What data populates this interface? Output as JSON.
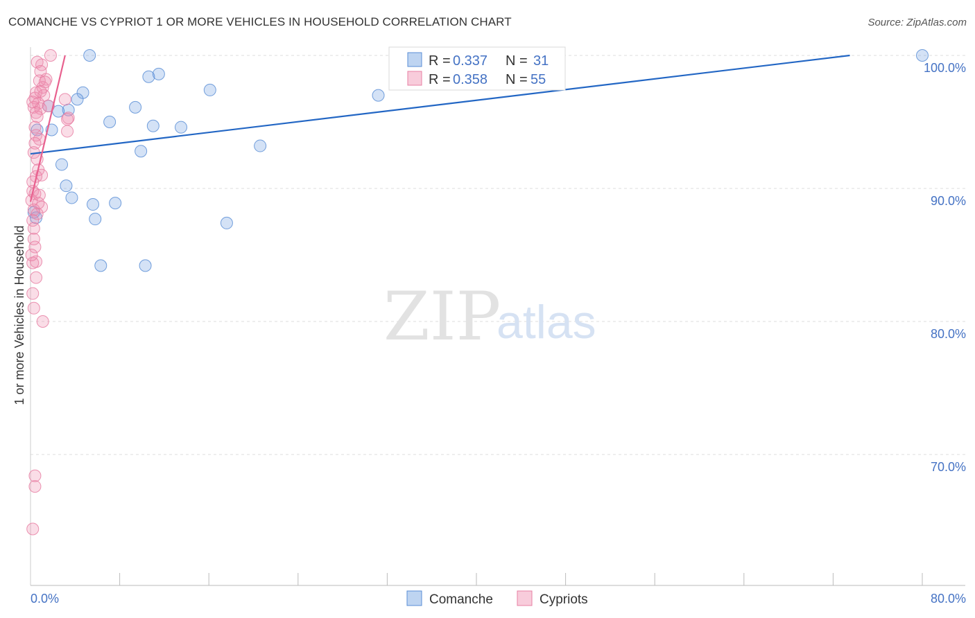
{
  "title": "COMANCHE VS CYPRIOT 1 OR MORE VEHICLES IN HOUSEHOLD CORRELATION CHART",
  "source": "Source: ZipAtlas.com",
  "watermark": {
    "zip": "ZIP",
    "atlas": "atlas"
  },
  "colors": {
    "comanche": "#6fa0e0",
    "comanche_line": "#2266c4",
    "cypriots": "#ef8fb0",
    "cypriots_line": "#e8608e",
    "tick": "#4472c4",
    "grid": "#dddddd"
  },
  "legend": {
    "r_label": "R =",
    "n_label": "N =",
    "comanche": {
      "r": "0.337",
      "n": "31"
    },
    "cypriots": {
      "r": "0.358",
      "n": "55"
    }
  },
  "bottom_legend": [
    "Comanche",
    "Cypriots"
  ],
  "chart_data": {
    "type": "scatter",
    "ylabel": "1 or more Vehicles in Household",
    "xlim": [
      0,
      80
    ],
    "ylim": [
      60,
      100
    ],
    "x_tick_labels": [
      "0.0%",
      "80.0%"
    ],
    "y_ticks": [
      100,
      90,
      80,
      70
    ],
    "y_tick_labels": [
      "100.0%",
      "90.0%",
      "80.0%",
      "70.0%"
    ],
    "grid": "horizontal dashed",
    "series": [
      {
        "name": "Comanche",
        "points": [
          [
            5.3,
            100.0
          ],
          [
            33.3,
            100.0
          ],
          [
            80.0,
            100.0
          ],
          [
            10.6,
            98.4
          ],
          [
            11.5,
            98.6
          ],
          [
            4.7,
            97.2
          ],
          [
            16.1,
            97.4
          ],
          [
            31.2,
            97.0
          ],
          [
            4.2,
            96.7
          ],
          [
            1.6,
            96.2
          ],
          [
            9.4,
            96.1
          ],
          [
            3.4,
            95.9
          ],
          [
            2.5,
            95.8
          ],
          [
            7.1,
            95.0
          ],
          [
            11.0,
            94.7
          ],
          [
            13.5,
            94.6
          ],
          [
            0.6,
            94.4
          ],
          [
            1.9,
            94.4
          ],
          [
            20.6,
            93.2
          ],
          [
            9.9,
            92.8
          ],
          [
            2.8,
            91.8
          ],
          [
            3.2,
            90.2
          ],
          [
            3.7,
            89.3
          ],
          [
            5.6,
            88.8
          ],
          [
            7.6,
            88.9
          ],
          [
            5.8,
            87.7
          ],
          [
            17.6,
            87.4
          ],
          [
            6.3,
            84.2
          ],
          [
            10.3,
            84.2
          ],
          [
            0.3,
            88.2
          ],
          [
            0.5,
            87.8
          ]
        ]
      },
      {
        "name": "Cypriots",
        "points": [
          [
            1.8,
            100.0
          ],
          [
            0.6,
            99.5
          ],
          [
            1.0,
            99.3
          ],
          [
            0.9,
            98.8
          ],
          [
            1.4,
            98.2
          ],
          [
            0.8,
            98.1
          ],
          [
            1.1,
            97.6
          ],
          [
            0.5,
            97.2
          ],
          [
            1.2,
            97.0
          ],
          [
            0.4,
            96.8
          ],
          [
            3.1,
            96.7
          ],
          [
            0.7,
            96.4
          ],
          [
            1.6,
            96.2
          ],
          [
            0.3,
            96.1
          ],
          [
            0.9,
            96.0
          ],
          [
            0.5,
            95.7
          ],
          [
            3.4,
            95.3
          ],
          [
            3.3,
            95.2
          ],
          [
            3.3,
            94.3
          ],
          [
            0.5,
            94.0
          ],
          [
            0.8,
            93.7
          ],
          [
            0.4,
            93.4
          ],
          [
            0.3,
            92.7
          ],
          [
            0.7,
            91.4
          ],
          [
            1.0,
            91.0
          ],
          [
            0.5,
            90.9
          ],
          [
            0.2,
            89.8
          ],
          [
            0.4,
            89.6
          ],
          [
            0.1,
            89.1
          ],
          [
            1.0,
            88.6
          ],
          [
            0.3,
            88.4
          ],
          [
            0.6,
            88.1
          ],
          [
            0.2,
            87.6
          ],
          [
            0.3,
            86.2
          ],
          [
            0.4,
            85.6
          ],
          [
            0.5,
            84.5
          ],
          [
            0.2,
            84.4
          ],
          [
            0.2,
            82.1
          ],
          [
            0.3,
            81.0
          ],
          [
            1.1,
            80.0
          ],
          [
            0.4,
            68.4
          ],
          [
            0.4,
            67.6
          ],
          [
            0.2,
            64.4
          ],
          [
            0.2,
            96.5
          ],
          [
            0.6,
            95.4
          ],
          [
            1.3,
            98.0
          ],
          [
            0.9,
            97.3
          ],
          [
            0.4,
            94.6
          ],
          [
            0.6,
            92.2
          ],
          [
            0.2,
            90.5
          ],
          [
            0.8,
            89.5
          ],
          [
            0.3,
            87.0
          ],
          [
            0.1,
            85.0
          ],
          [
            0.5,
            83.3
          ],
          [
            0.7,
            88.9
          ]
        ]
      }
    ],
    "trend_lines": [
      {
        "name": "Comanche",
        "x": [
          0,
          73.5
        ],
        "y": [
          92.6,
          100.0
        ]
      },
      {
        "name": "Cypriots",
        "x": [
          0,
          3.1
        ],
        "y": [
          89.0,
          100.0
        ]
      }
    ]
  }
}
